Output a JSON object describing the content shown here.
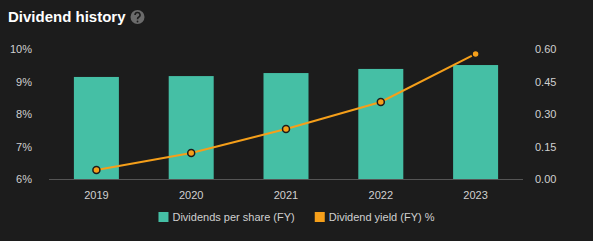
{
  "chart_data": {
    "type": "bar",
    "title": "Dividend history",
    "categories": [
      "2019",
      "2020",
      "2021",
      "2022",
      "2023"
    ],
    "series": [
      {
        "name": "Dividends per share (FY)",
        "type": "bar",
        "axis": "y2",
        "color": "#45bfa5",
        "values": [
          0.471,
          0.475,
          0.489,
          0.508,
          0.526
        ]
      },
      {
        "name": "Dividend yield (FY) %",
        "type": "line",
        "axis": "y",
        "color": "#f59f1a",
        "marker": "circle",
        "values": [
          6.28,
          6.8,
          7.54,
          8.37,
          9.85
        ]
      }
    ],
    "ylim": [
      6,
      10
    ],
    "yticks": [
      {
        "value": 6,
        "label": "6%"
      },
      {
        "value": 7,
        "label": "7%"
      },
      {
        "value": 8,
        "label": "8%"
      },
      {
        "value": 9,
        "label": "9%"
      },
      {
        "value": 10,
        "label": "10%"
      }
    ],
    "y2lim": [
      0,
      0.6
    ],
    "y2ticks": [
      {
        "value": 0,
        "label": "0.00"
      },
      {
        "value": 0.15,
        "label": "0.15"
      },
      {
        "value": 0.3,
        "label": "0.30"
      },
      {
        "value": 0.45,
        "label": "0.45"
      },
      {
        "value": 0.6,
        "label": "0.60"
      }
    ],
    "grid": false,
    "legend": "bottom"
  }
}
